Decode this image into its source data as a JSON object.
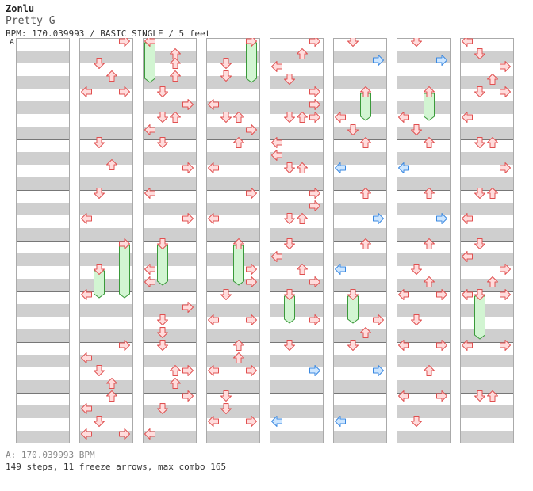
{
  "header": {
    "artist": "Zonlu",
    "title": "Pretty G",
    "meta": "BPM: 170.039993 / BASIC SINGLE / 5 feet"
  },
  "marker": {
    "label": "A"
  },
  "footer": {
    "bpm": "A: 170.039993 BPM",
    "steps": "149 steps, 11 freeze arrows, max combo 165"
  },
  "colors": {
    "arrow_fill": "#ffdcdc",
    "arrow_stroke": "#e05050",
    "half_fill": "#cde6ff",
    "half_stroke": "#3a88e0",
    "freeze_fill": "#d2f5d2",
    "freeze_stroke": "#3a9a3a",
    "band": "#cfcfcf"
  },
  "chart": {
    "beats_per_measure": 4,
    "measures_per_column": 8,
    "columns": [
      {
        "arrows": [],
        "freezes": []
      },
      {
        "arrows": [
          {
            "lane": "R",
            "beat": 0.25
          },
          {
            "lane": "D",
            "beat": 2
          },
          {
            "lane": "U",
            "beat": 3
          },
          {
            "lane": "L",
            "beat": 4.25
          },
          {
            "lane": "R",
            "beat": 4.25
          },
          {
            "lane": "D",
            "beat": 8.25
          },
          {
            "lane": "U",
            "beat": 10
          },
          {
            "lane": "D",
            "beat": 12.25
          },
          {
            "lane": "L",
            "beat": 14.25
          },
          {
            "lane": "R",
            "beat": 16.25
          },
          {
            "lane": "D",
            "beat": 18.25
          },
          {
            "lane": "L",
            "beat": 20.25
          },
          {
            "lane": "R",
            "beat": 24.25
          },
          {
            "lane": "L",
            "beat": 25.25
          },
          {
            "lane": "D",
            "beat": 26.25
          },
          {
            "lane": "U",
            "beat": 27.25
          },
          {
            "lane": "U",
            "beat": 28.25
          },
          {
            "lane": "L",
            "beat": 29.25
          },
          {
            "lane": "D",
            "beat": 30.25
          },
          {
            "lane": "L",
            "beat": 31.25
          },
          {
            "lane": "R",
            "beat": 31.25
          }
        ],
        "freezes": [
          {
            "lane": "D",
            "beat": 18.25,
            "len": 2.25
          },
          {
            "lane": "R",
            "beat": 16.25,
            "len": 4.25
          }
        ]
      },
      {
        "arrows": [
          {
            "lane": "L",
            "beat": 0.25
          },
          {
            "lane": "U",
            "beat": 1.25
          },
          {
            "lane": "U",
            "beat": 2
          },
          {
            "lane": "U",
            "beat": 3
          },
          {
            "lane": "D",
            "beat": 4.25
          },
          {
            "lane": "R",
            "beat": 5.25
          },
          {
            "lane": "D",
            "beat": 6.25
          },
          {
            "lane": "U",
            "beat": 6.25
          },
          {
            "lane": "L",
            "beat": 7.25
          },
          {
            "lane": "D",
            "beat": 8.25
          },
          {
            "lane": "R",
            "beat": 10.25
          },
          {
            "lane": "L",
            "beat": 12.25
          },
          {
            "lane": "R",
            "beat": 14.25
          },
          {
            "lane": "D",
            "beat": 16.25
          },
          {
            "lane": "L",
            "beat": 18.25
          },
          {
            "lane": "L",
            "beat": 19.25
          },
          {
            "lane": "R",
            "beat": 21.25
          },
          {
            "lane": "D",
            "beat": 22.25
          },
          {
            "lane": "D",
            "beat": 23.25
          },
          {
            "lane": "D",
            "beat": 24.25
          },
          {
            "lane": "U",
            "beat": 26.25
          },
          {
            "lane": "R",
            "beat": 26.25
          },
          {
            "lane": "U",
            "beat": 27.25
          },
          {
            "lane": "R",
            "beat": 28.25
          },
          {
            "lane": "D",
            "beat": 29.25
          },
          {
            "lane": "L",
            "beat": 31.25
          }
        ],
        "freezes": [
          {
            "lane": "L",
            "beat": 0.25,
            "len": 3.25
          },
          {
            "lane": "D",
            "beat": 16.25,
            "len": 3.25
          }
        ]
      },
      {
        "arrows": [
          {
            "lane": "R",
            "beat": 0.25
          },
          {
            "lane": "D",
            "beat": 2
          },
          {
            "lane": "D",
            "beat": 3
          },
          {
            "lane": "L",
            "beat": 5.25
          },
          {
            "lane": "D",
            "beat": 6.25
          },
          {
            "lane": "U",
            "beat": 6.25
          },
          {
            "lane": "R",
            "beat": 7.25
          },
          {
            "lane": "U",
            "beat": 8.25
          },
          {
            "lane": "L",
            "beat": 10.25
          },
          {
            "lane": "R",
            "beat": 12.25
          },
          {
            "lane": "L",
            "beat": 14.25
          },
          {
            "lane": "U",
            "beat": 16.25
          },
          {
            "lane": "R",
            "beat": 18.25
          },
          {
            "lane": "R",
            "beat": 19.25
          },
          {
            "lane": "D",
            "beat": 20.25
          },
          {
            "lane": "L",
            "beat": 22.25
          },
          {
            "lane": "R",
            "beat": 22.25
          },
          {
            "lane": "U",
            "beat": 24.25
          },
          {
            "lane": "U",
            "beat": 25.25
          },
          {
            "lane": "L",
            "beat": 26.25
          },
          {
            "lane": "R",
            "beat": 26.25
          },
          {
            "lane": "D",
            "beat": 28.25
          },
          {
            "lane": "D",
            "beat": 29.25
          },
          {
            "lane": "L",
            "beat": 30.25
          },
          {
            "lane": "R",
            "beat": 30.25
          }
        ],
        "freezes": [
          {
            "lane": "R",
            "beat": 0.25,
            "len": 3.25
          },
          {
            "lane": "U",
            "beat": 16.25,
            "len": 3.25
          }
        ]
      },
      {
        "arrows": [
          {
            "lane": "R",
            "beat": 0.25
          },
          {
            "lane": "U",
            "beat": 1.25
          },
          {
            "lane": "L",
            "beat": 2.25
          },
          {
            "lane": "D",
            "beat": 3.25
          },
          {
            "lane": "R",
            "beat": 4.25
          },
          {
            "lane": "R",
            "beat": 5.25
          },
          {
            "lane": "D",
            "beat": 6.25
          },
          {
            "lane": "U",
            "beat": 6.25
          },
          {
            "lane": "R",
            "beat": 6.25
          },
          {
            "lane": "L",
            "beat": 8.25
          },
          {
            "lane": "L",
            "beat": 9.25
          },
          {
            "lane": "D",
            "beat": 10.25
          },
          {
            "lane": "U",
            "beat": 10.25
          },
          {
            "lane": "R",
            "beat": 12.25
          },
          {
            "lane": "R",
            "beat": 13.25
          },
          {
            "lane": "D",
            "beat": 14.25
          },
          {
            "lane": "U",
            "beat": 14.25
          },
          {
            "lane": "D",
            "beat": 16.25
          },
          {
            "lane": "L",
            "beat": 17.25
          },
          {
            "lane": "U",
            "beat": 18.25
          },
          {
            "lane": "R",
            "beat": 19.25
          },
          {
            "lane": "D",
            "beat": 20.25
          },
          {
            "lane": "R",
            "beat": 22.25
          },
          {
            "lane": "D",
            "beat": 24.25
          },
          {
            "lane": "R",
            "beat": 26.25,
            "half": true
          },
          {
            "lane": "L",
            "beat": 30.25,
            "half": true
          }
        ],
        "freezes": [
          {
            "lane": "D",
            "beat": 20.25,
            "len": 2.25
          }
        ]
      },
      {
        "arrows": [
          {
            "lane": "D",
            "beat": 0.25
          },
          {
            "lane": "R",
            "beat": 1.75,
            "half": true
          },
          {
            "lane": "U",
            "beat": 4.25
          },
          {
            "lane": "L",
            "beat": 6.25
          },
          {
            "lane": "D",
            "beat": 7.25
          },
          {
            "lane": "U",
            "beat": 8.25
          },
          {
            "lane": "L",
            "beat": 10.25,
            "half": true
          },
          {
            "lane": "U",
            "beat": 12.25
          },
          {
            "lane": "R",
            "beat": 14.25,
            "half": true
          },
          {
            "lane": "U",
            "beat": 16.25
          },
          {
            "lane": "L",
            "beat": 18.25,
            "half": true
          },
          {
            "lane": "D",
            "beat": 20.25
          },
          {
            "lane": "R",
            "beat": 22.25
          },
          {
            "lane": "U",
            "beat": 23.25
          },
          {
            "lane": "D",
            "beat": 24.25
          },
          {
            "lane": "R",
            "beat": 26.25,
            "half": true
          },
          {
            "lane": "L",
            "beat": 30.25,
            "half": true
          }
        ],
        "freezes": [
          {
            "lane": "U",
            "beat": 4.25,
            "len": 2.25
          },
          {
            "lane": "D",
            "beat": 20.25,
            "len": 2.25
          }
        ]
      },
      {
        "arrows": [
          {
            "lane": "D",
            "beat": 0.25
          },
          {
            "lane": "R",
            "beat": 1.75,
            "half": true
          },
          {
            "lane": "U",
            "beat": 4.25
          },
          {
            "lane": "L",
            "beat": 6.25
          },
          {
            "lane": "D",
            "beat": 7.25
          },
          {
            "lane": "U",
            "beat": 8.25
          },
          {
            "lane": "L",
            "beat": 10.25,
            "half": true
          },
          {
            "lane": "U",
            "beat": 12.25
          },
          {
            "lane": "R",
            "beat": 14.25,
            "half": true
          },
          {
            "lane": "U",
            "beat": 16.25
          },
          {
            "lane": "D",
            "beat": 18.25
          },
          {
            "lane": "U",
            "beat": 19.25
          },
          {
            "lane": "L",
            "beat": 20.25
          },
          {
            "lane": "R",
            "beat": 20.25
          },
          {
            "lane": "D",
            "beat": 22.25
          },
          {
            "lane": "L",
            "beat": 24.25
          },
          {
            "lane": "R",
            "beat": 24.25
          },
          {
            "lane": "U",
            "beat": 26.25
          },
          {
            "lane": "L",
            "beat": 28.25
          },
          {
            "lane": "R",
            "beat": 28.25
          },
          {
            "lane": "D",
            "beat": 30.25
          }
        ],
        "freezes": [
          {
            "lane": "U",
            "beat": 4.25,
            "len": 2.25
          }
        ]
      },
      {
        "arrows": [
          {
            "lane": "L",
            "beat": 0.25
          },
          {
            "lane": "D",
            "beat": 1.25
          },
          {
            "lane": "R",
            "beat": 2.25
          },
          {
            "lane": "U",
            "beat": 3.25
          },
          {
            "lane": "D",
            "beat": 4.25
          },
          {
            "lane": "R",
            "beat": 4.25
          },
          {
            "lane": "L",
            "beat": 6.25
          },
          {
            "lane": "D",
            "beat": 8.25
          },
          {
            "lane": "U",
            "beat": 8.25
          },
          {
            "lane": "R",
            "beat": 10.25
          },
          {
            "lane": "D",
            "beat": 12.25
          },
          {
            "lane": "U",
            "beat": 12.25
          },
          {
            "lane": "L",
            "beat": 14.25
          },
          {
            "lane": "D",
            "beat": 16.25
          },
          {
            "lane": "L",
            "beat": 17.25
          },
          {
            "lane": "R",
            "beat": 18.25
          },
          {
            "lane": "U",
            "beat": 19.25
          },
          {
            "lane": "L",
            "beat": 20.25
          },
          {
            "lane": "D",
            "beat": 20.25
          },
          {
            "lane": "R",
            "beat": 20.25
          },
          {
            "lane": "L",
            "beat": 24.25
          },
          {
            "lane": "R",
            "beat": 24.25
          },
          {
            "lane": "D",
            "beat": 28.25
          },
          {
            "lane": "U",
            "beat": 28.25
          }
        ],
        "freezes": [
          {
            "lane": "D",
            "beat": 20.25,
            "len": 3.5
          }
        ]
      }
    ]
  }
}
